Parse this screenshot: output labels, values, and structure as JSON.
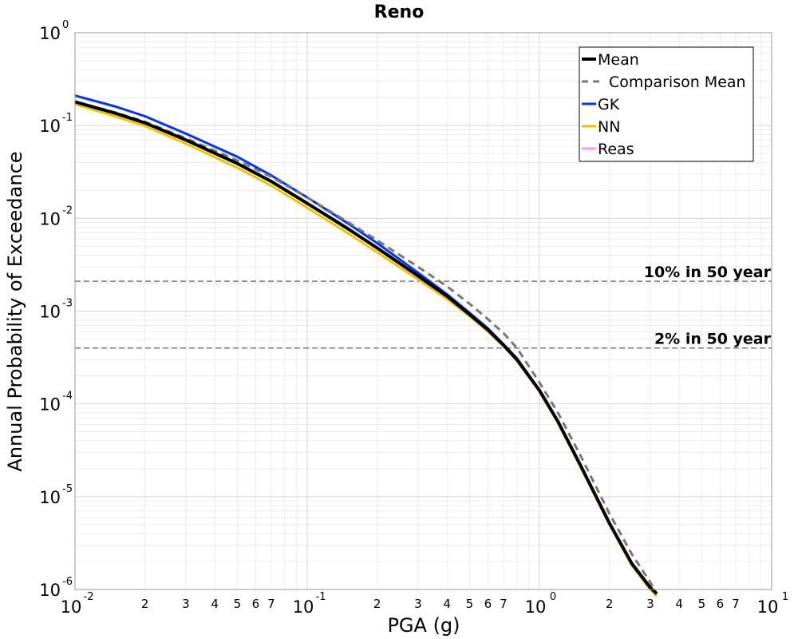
{
  "chart_data": {
    "type": "line",
    "title": "Reno",
    "xlabel": "PGA (g)",
    "ylabel": "Annual Probability of Exceedance",
    "xscale": "log",
    "yscale": "log",
    "xlim": [
      0.01,
      10
    ],
    "ylim": [
      1e-06,
      1
    ],
    "grid": true,
    "legend_position": "top-right",
    "x_major_ticks": [
      {
        "value": 0.01,
        "base": "10",
        "exp": "-2"
      },
      {
        "value": 0.1,
        "base": "10",
        "exp": "-1"
      },
      {
        "value": 1,
        "base": "10",
        "exp": "0"
      },
      {
        "value": 10,
        "base": "10",
        "exp": "1"
      }
    ],
    "x_minor_tick_labels": [
      "2",
      "3",
      "4",
      "5",
      "6",
      "7"
    ],
    "y_major_ticks": [
      {
        "value": 1,
        "base": "10",
        "exp": "0"
      },
      {
        "value": 0.1,
        "base": "10",
        "exp": "-1"
      },
      {
        "value": 0.01,
        "base": "10",
        "exp": "-2"
      },
      {
        "value": 0.001,
        "base": "10",
        "exp": "-3"
      },
      {
        "value": 0.0001,
        "base": "10",
        "exp": "-4"
      },
      {
        "value": 1e-05,
        "base": "10",
        "exp": "-5"
      },
      {
        "value": 1e-06,
        "base": "10",
        "exp": "-6"
      }
    ],
    "series": [
      {
        "name": "Mean",
        "color": "#000000",
        "style": "solid",
        "width": 4,
        "x": [
          0.01,
          0.015,
          0.02,
          0.03,
          0.05,
          0.07,
          0.1,
          0.15,
          0.2,
          0.3,
          0.4,
          0.5,
          0.6,
          0.7,
          0.8,
          1.0,
          1.2,
          1.5,
          2.0,
          2.5,
          3.0,
          3.2
        ],
        "y": [
          0.18,
          0.135,
          0.107,
          0.07,
          0.039,
          0.025,
          0.0145,
          0.0077,
          0.0048,
          0.0024,
          0.00145,
          0.00092,
          0.00063,
          0.00043,
          0.0003,
          0.00014,
          6.5e-05,
          2.2e-05,
          5.2e-06,
          1.9e-06,
          1.05e-06,
          9e-07
        ]
      },
      {
        "name": "Comparison Mean",
        "color": "#777777",
        "style": "dashed",
        "width": 3,
        "x": [
          0.01,
          0.015,
          0.02,
          0.03,
          0.05,
          0.07,
          0.1,
          0.15,
          0.2,
          0.3,
          0.4,
          0.5,
          0.6,
          0.7,
          0.8,
          1.0,
          1.2,
          1.5,
          2.0,
          2.5,
          3.0,
          3.2
        ],
        "y": [
          0.18,
          0.138,
          0.11,
          0.073,
          0.042,
          0.028,
          0.0168,
          0.0091,
          0.0058,
          0.003,
          0.00185,
          0.0012,
          0.00082,
          0.00058,
          0.0004,
          0.00017,
          8.1e-05,
          2.8e-05,
          6.6e-06,
          2.4e-06,
          1.2e-06,
          9e-07
        ]
      },
      {
        "name": "GK",
        "color": "#0033ff",
        "style": "solid",
        "width": 3,
        "x": [
          0.01,
          0.015,
          0.02,
          0.03,
          0.05,
          0.07,
          0.1,
          0.15,
          0.2,
          0.3,
          0.4,
          0.5,
          0.6,
          0.7,
          0.8,
          1.0,
          1.2,
          1.5,
          2.0,
          2.5,
          3.0,
          3.2
        ],
        "y": [
          0.21,
          0.16,
          0.126,
          0.082,
          0.046,
          0.029,
          0.0168,
          0.0088,
          0.0054,
          0.0026,
          0.00152,
          0.00096,
          0.00065,
          0.00044,
          0.00031,
          0.00014,
          6.5e-05,
          2.2e-05,
          5.2e-06,
          1.9e-06,
          1.05e-06,
          9e-07
        ]
      },
      {
        "name": "NN",
        "color": "#f2c200",
        "style": "solid",
        "width": 3,
        "x": [
          0.01,
          0.015,
          0.02,
          0.03,
          0.05,
          0.07,
          0.1,
          0.15,
          0.2,
          0.3,
          0.4,
          0.5,
          0.6,
          0.7,
          0.8,
          1.0,
          1.2,
          1.5,
          2.0,
          2.5,
          3.0,
          3.2
        ],
        "y": [
          0.17,
          0.125,
          0.099,
          0.064,
          0.035,
          0.0225,
          0.013,
          0.0069,
          0.0043,
          0.0022,
          0.00135,
          0.00088,
          0.0006,
          0.00042,
          0.00029,
          0.000135,
          6.3e-05,
          2.1e-05,
          5e-06,
          1.8e-06,
          1e-06,
          8.5e-07
        ]
      },
      {
        "name": "Reas",
        "color": "#ff99e6",
        "style": "solid",
        "width": 3,
        "x": [
          0.01,
          0.015,
          0.02,
          0.03,
          0.05,
          0.07,
          0.1,
          0.15,
          0.2,
          0.3,
          0.4,
          0.5,
          0.6,
          0.7,
          0.8,
          1.0,
          1.2,
          1.5,
          2.0,
          2.5,
          3.0,
          3.2
        ],
        "y": [
          0.18,
          0.135,
          0.107,
          0.07,
          0.039,
          0.025,
          0.0145,
          0.0077,
          0.0048,
          0.0024,
          0.00145,
          0.00092,
          0.00063,
          0.00043,
          0.0003,
          0.00014,
          6.5e-05,
          2.2e-05,
          5.2e-06,
          1.9e-06,
          1.05e-06,
          9e-07
        ]
      }
    ],
    "reference_lines": [
      {
        "label": "10% in 50 year",
        "y": 0.0021
      },
      {
        "label": "2% in 50 year",
        "y": 0.0004
      }
    ]
  }
}
